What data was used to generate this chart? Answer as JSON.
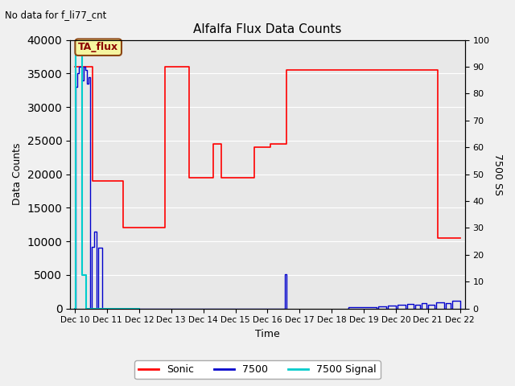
{
  "title": "Alfalfa Flux Data Counts",
  "no_data_label": "No data for f_li77_cnt",
  "ta_flux_label": "TA_flux",
  "xlabel": "Time",
  "ylabel": "Data Counts",
  "ylabel_right": "7500 SS",
  "ylim_left": [
    0,
    40000
  ],
  "ylim_right": [
    0,
    100
  ],
  "xtick_labels": [
    "Dec 10",
    "Dec 11",
    "Dec 12",
    "Dec 13",
    "Dec 14",
    "Dec 15",
    "Dec 16",
    "Dec 17",
    "Dec 18",
    "Dec 19",
    "Dec 20",
    "Dec 21",
    "Dec 22"
  ],
  "sonic_x": [
    10.0,
    10.05,
    10.05,
    10.55,
    10.55,
    11.5,
    11.5,
    12.8,
    12.8,
    13.05,
    13.05,
    13.55,
    13.55,
    14.3,
    14.3,
    14.55,
    14.55,
    15.6,
    15.6,
    16.1,
    16.1,
    16.6,
    16.6,
    21.3,
    21.3,
    22.0
  ],
  "sonic_y": [
    36000,
    36000,
    36000,
    36000,
    19000,
    19000,
    12000,
    12000,
    36000,
    36000,
    36000,
    36000,
    19500,
    19500,
    24500,
    24500,
    19500,
    19500,
    24000,
    24000,
    24500,
    24500,
    35500,
    35500,
    10500,
    10500
  ],
  "sonic_color": "#ff0000",
  "s7500_x": [
    10.0,
    10.02,
    10.02,
    10.07,
    10.07,
    10.12,
    10.12,
    10.17,
    10.17,
    10.22,
    10.22,
    10.28,
    10.28,
    10.33,
    10.33,
    10.38,
    10.38,
    10.43,
    10.43,
    10.48,
    10.48,
    10.53,
    10.53,
    10.6,
    10.6,
    10.67,
    10.67,
    10.73,
    10.73,
    10.85,
    10.85,
    11.05,
    11.05,
    11.1,
    11.1,
    16.55,
    16.55,
    16.6,
    16.6
  ],
  "s7500_y": [
    0,
    0,
    33000,
    33000,
    35000,
    35000,
    36000,
    36000,
    36000,
    36000,
    34000,
    34000,
    36000,
    36000,
    35500,
    35500,
    33500,
    33500,
    34500,
    34500,
    0,
    0,
    9200,
    9200,
    11500,
    11500,
    0,
    0,
    9000,
    9000,
    0,
    0,
    0,
    0,
    0,
    0,
    5100,
    5100,
    0
  ],
  "s7500_color": "#0000cc",
  "s7500_small_x": [
    18.5,
    18.52,
    18.52,
    19.4,
    19.4,
    19.44,
    19.44,
    19.7,
    19.7,
    19.74,
    19.74,
    20.0,
    20.0,
    20.05,
    20.05,
    20.3,
    20.3,
    20.35,
    20.35,
    20.55,
    20.55,
    20.6,
    20.6,
    20.75,
    20.75,
    20.8,
    20.8,
    20.95,
    20.95,
    21.0,
    21.0,
    21.2,
    21.2,
    21.25,
    21.25,
    21.5,
    21.5,
    21.55,
    21.55,
    21.7,
    21.7,
    21.75,
    21.75,
    22.0,
    22.0
  ],
  "s7500_small_y": [
    0,
    0,
    200,
    200,
    0,
    0,
    300,
    300,
    0,
    0,
    400,
    400,
    0,
    0,
    600,
    600,
    0,
    0,
    700,
    700,
    0,
    0,
    500,
    500,
    0,
    0,
    800,
    800,
    0,
    0,
    600,
    600,
    0,
    0,
    900,
    900,
    0,
    0,
    800,
    800,
    0,
    0,
    1100,
    1100,
    0
  ],
  "signal_x": [
    10.0,
    10.03,
    10.03,
    10.23,
    10.23,
    10.35,
    10.35,
    12.0,
    12.0
  ],
  "signal_y": [
    0,
    0,
    40000,
    40000,
    5000,
    5000,
    0,
    0,
    0
  ],
  "signal_color": "#00cccc",
  "bg_color": "#e8e8e8",
  "plot_bg_color": "#e8e8e8",
  "legend_entries": [
    "Sonic",
    "7500",
    "7500 Signal"
  ],
  "legend_colors": [
    "#ff0000",
    "#0000cc",
    "#00cccc"
  ]
}
